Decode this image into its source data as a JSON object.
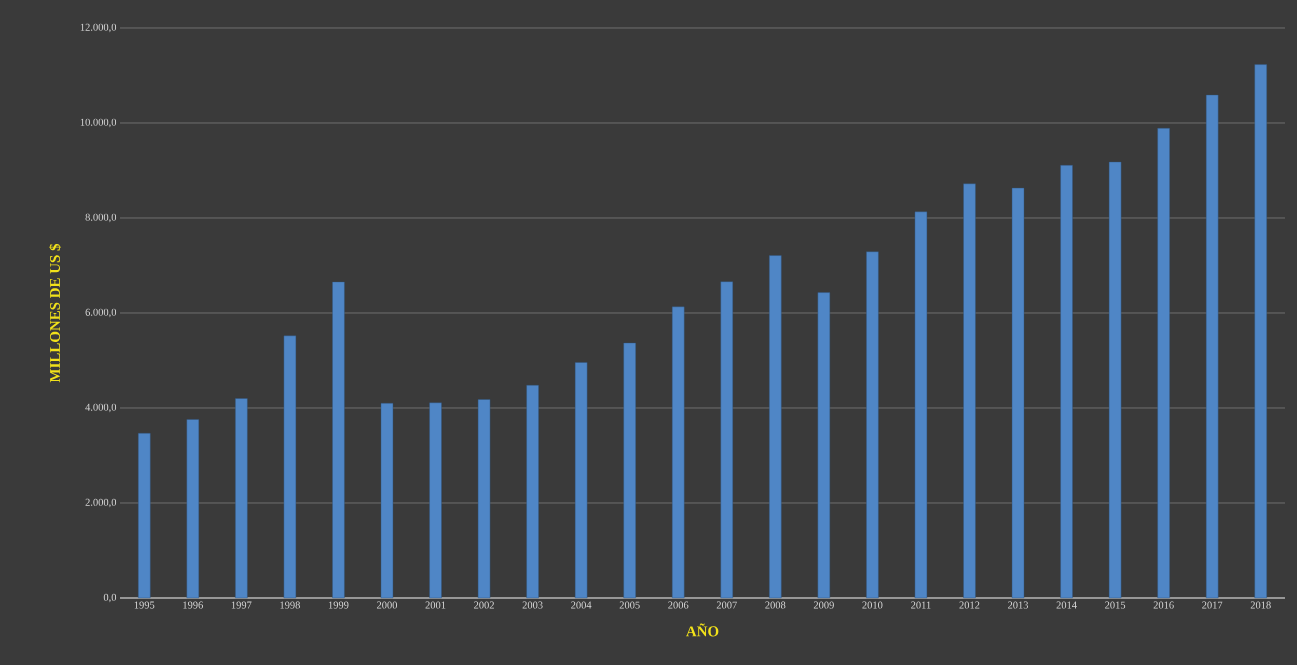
{
  "chart_data": {
    "type": "bar",
    "xlabel": "AÑO",
    "ylabel": "MILLONES DE US $",
    "categories": [
      "1995",
      "1996",
      "1997",
      "1998",
      "1999",
      "2000",
      "2001",
      "2002",
      "2003",
      "2004",
      "2005",
      "2006",
      "2007",
      "2008",
      "2009",
      "2010",
      "2011",
      "2012",
      "2013",
      "2014",
      "2015",
      "2016",
      "2017",
      "2018"
    ],
    "values": [
      3470,
      3760,
      4200,
      5520,
      6655,
      4100,
      4110,
      4180,
      4480,
      4960,
      5370,
      6130,
      6660,
      7210,
      6430,
      7290,
      8130,
      8720,
      8630,
      9110,
      9180,
      9890,
      10590,
      11230
    ],
    "color": "#4f86c6",
    "ylim": [
      0,
      12000
    ],
    "yticks": [
      {
        "value": 0,
        "label": "0,0"
      },
      {
        "value": 2000,
        "label": "2.000,0"
      },
      {
        "value": 4000,
        "label": "4.000,0"
      },
      {
        "value": 6000,
        "label": "6.000,0"
      },
      {
        "value": 8000,
        "label": "8.000,0"
      },
      {
        "value": 10000,
        "label": "10.000,0"
      },
      {
        "value": 12000,
        "label": "12.000,0"
      }
    ],
    "grid": "y"
  }
}
